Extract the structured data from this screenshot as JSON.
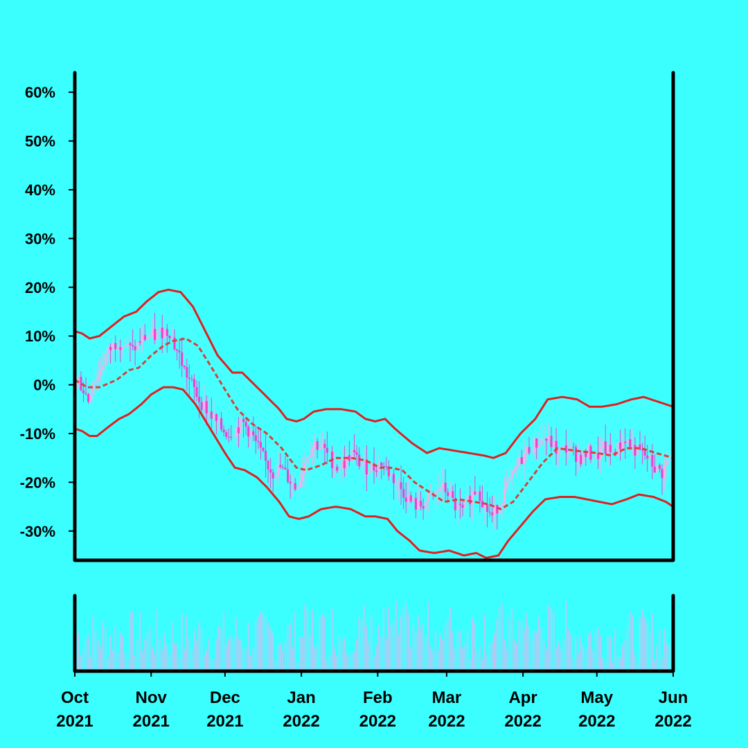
{
  "colors": {
    "background": "#3bffff",
    "band_fill": "#47ffff",
    "band_line": "#e01e1e",
    "mid_line": "#d8403a",
    "candle_up": "#f4b3e6",
    "candle_down": "#f53fd0",
    "volume": "#b9c8f5",
    "axis": "#000000"
  },
  "chart_data": {
    "type": "candlestick",
    "title": "",
    "xlabel": "",
    "ylabel": "",
    "ylim": [
      -36,
      64
    ],
    "ytick_values": [
      -30,
      -20,
      -10,
      0,
      10,
      20,
      30,
      40,
      50,
      60
    ],
    "ytick_labels": [
      "-30%",
      "-20%",
      "-10%",
      "0%",
      "10%",
      "20%",
      "30%",
      "40%",
      "50%",
      "60%"
    ],
    "x_start": "2021-10-01",
    "x_end": "2022-06-01",
    "xtick_labels": [
      [
        "Oct",
        "2021"
      ],
      [
        "Nov",
        "2021"
      ],
      [
        "Dec",
        "2021"
      ],
      [
        "Jan",
        "2022"
      ],
      [
        "Feb",
        "2022"
      ],
      [
        "Mar",
        "2022"
      ],
      [
        "Apr",
        "2022"
      ],
      [
        "May",
        "2022"
      ],
      [
        "Jun",
        "2022"
      ]
    ],
    "xtick_days": [
      0,
      31,
      61,
      92,
      123,
      151,
      182,
      212,
      243
    ],
    "series": [
      {
        "name": "middle band (moving average)",
        "style": "dashed",
        "points": [
          [
            0,
            1
          ],
          [
            5,
            -0.5
          ],
          [
            10,
            -0.5
          ],
          [
            17,
            1
          ],
          [
            22,
            3
          ],
          [
            26,
            3.5
          ],
          [
            31,
            6
          ],
          [
            36,
            8
          ],
          [
            40,
            9
          ],
          [
            45,
            9.5
          ],
          [
            50,
            8
          ],
          [
            55,
            4
          ],
          [
            61,
            -1
          ],
          [
            66,
            -5
          ],
          [
            72,
            -8
          ],
          [
            78,
            -10
          ],
          [
            84,
            -13
          ],
          [
            90,
            -17
          ],
          [
            94,
            -17.5
          ],
          [
            100,
            -16.5
          ],
          [
            106,
            -15
          ],
          [
            112,
            -15
          ],
          [
            118,
            -15.5
          ],
          [
            124,
            -17
          ],
          [
            128,
            -17
          ],
          [
            133,
            -17.5
          ],
          [
            138,
            -20
          ],
          [
            144,
            -22
          ],
          [
            150,
            -24
          ],
          [
            156,
            -23.5
          ],
          [
            162,
            -24
          ],
          [
            168,
            -24.5
          ],
          [
            173,
            -25.5
          ],
          [
            178,
            -24
          ],
          [
            184,
            -20
          ],
          [
            190,
            -16
          ],
          [
            196,
            -13
          ],
          [
            203,
            -13.5
          ],
          [
            212,
            -14
          ],
          [
            218,
            -14.5
          ],
          [
            224,
            -13
          ],
          [
            230,
            -13
          ],
          [
            236,
            -14
          ],
          [
            243,
            -15
          ]
        ]
      },
      {
        "name": "upper band",
        "style": "solid",
        "points": [
          [
            0,
            11
          ],
          [
            3,
            10.5
          ],
          [
            6,
            9.5
          ],
          [
            10,
            10
          ],
          [
            15,
            12
          ],
          [
            20,
            14
          ],
          [
            25,
            15
          ],
          [
            29,
            17
          ],
          [
            34,
            19
          ],
          [
            38,
            19.5
          ],
          [
            43,
            19
          ],
          [
            48,
            16
          ],
          [
            53,
            11
          ],
          [
            58,
            6
          ],
          [
            64,
            2.5
          ],
          [
            68,
            2.5
          ],
          [
            73,
            0
          ],
          [
            77,
            -2
          ],
          [
            83,
            -5
          ],
          [
            86,
            -7
          ],
          [
            90,
            -7.5
          ],
          [
            93,
            -7
          ],
          [
            97,
            -5.5
          ],
          [
            102,
            -5
          ],
          [
            108,
            -5
          ],
          [
            114,
            -5.5
          ],
          [
            118,
            -7
          ],
          [
            122,
            -7.5
          ],
          [
            126,
            -7
          ],
          [
            130,
            -9
          ],
          [
            137,
            -12
          ],
          [
            143,
            -14
          ],
          [
            148,
            -13
          ],
          [
            154,
            -13.5
          ],
          [
            160,
            -14
          ],
          [
            166,
            -14.5
          ],
          [
            170,
            -15
          ],
          [
            175,
            -14
          ],
          [
            181,
            -10
          ],
          [
            187,
            -7
          ],
          [
            192,
            -3
          ],
          [
            198,
            -2.5
          ],
          [
            204,
            -3
          ],
          [
            209,
            -4.5
          ],
          [
            214,
            -4.5
          ],
          [
            220,
            -4
          ],
          [
            226,
            -3
          ],
          [
            231,
            -2.5
          ],
          [
            237,
            -3.5
          ],
          [
            243,
            -4.5
          ]
        ]
      },
      {
        "name": "lower band",
        "style": "solid",
        "points": [
          [
            0,
            -9
          ],
          [
            3,
            -9.5
          ],
          [
            6,
            -10.5
          ],
          [
            9,
            -10.5
          ],
          [
            14,
            -8.5
          ],
          [
            18,
            -7
          ],
          [
            22,
            -6
          ],
          [
            27,
            -4
          ],
          [
            31,
            -2
          ],
          [
            36,
            -0.5
          ],
          [
            40,
            -0.5
          ],
          [
            44,
            -1
          ],
          [
            49,
            -4
          ],
          [
            55,
            -9
          ],
          [
            61,
            -14
          ],
          [
            65,
            -17
          ],
          [
            69,
            -17.5
          ],
          [
            74,
            -19
          ],
          [
            78,
            -21
          ],
          [
            83,
            -24
          ],
          [
            87,
            -27
          ],
          [
            91,
            -27.5
          ],
          [
            95,
            -27
          ],
          [
            100,
            -25.5
          ],
          [
            106,
            -25
          ],
          [
            112,
            -25.5
          ],
          [
            118,
            -27
          ],
          [
            122,
            -27
          ],
          [
            127,
            -27.5
          ],
          [
            131,
            -30
          ],
          [
            136,
            -32
          ],
          [
            140,
            -34
          ],
          [
            146,
            -34.5
          ],
          [
            152,
            -34
          ],
          [
            158,
            -35
          ],
          [
            163,
            -34.5
          ],
          [
            167,
            -35.5
          ],
          [
            172,
            -35
          ],
          [
            176,
            -32
          ],
          [
            181,
            -29
          ],
          [
            186,
            -26
          ],
          [
            191,
            -23.5
          ],
          [
            197,
            -23
          ],
          [
            203,
            -23
          ],
          [
            208,
            -23.5
          ],
          [
            213,
            -24
          ],
          [
            218,
            -24.5
          ],
          [
            224,
            -23.5
          ],
          [
            229,
            -22.5
          ],
          [
            235,
            -23
          ],
          [
            240,
            -24
          ],
          [
            243,
            -25
          ]
        ]
      },
      {
        "name": "price path",
        "style": "candles",
        "points": [
          [
            0,
            -1
          ],
          [
            2,
            1
          ],
          [
            4,
            -1
          ],
          [
            6,
            -3
          ],
          [
            8,
            1
          ],
          [
            10,
            2
          ],
          [
            13,
            6
          ],
          [
            16,
            8
          ],
          [
            18,
            9
          ],
          [
            21,
            8
          ],
          [
            24,
            7
          ],
          [
            27,
            9
          ],
          [
            30,
            10
          ],
          [
            33,
            10
          ],
          [
            36,
            11
          ],
          [
            39,
            11
          ],
          [
            41,
            8
          ],
          [
            43,
            6
          ],
          [
            45,
            3
          ],
          [
            47,
            1
          ],
          [
            49,
            -1
          ],
          [
            51,
            -3
          ],
          [
            54,
            -5
          ],
          [
            57,
            -7
          ],
          [
            60,
            -9
          ],
          [
            63,
            -10
          ],
          [
            66,
            -9
          ],
          [
            69,
            -8
          ],
          [
            72,
            -10
          ],
          [
            75,
            -13
          ],
          [
            78,
            -16
          ],
          [
            81,
            -18
          ],
          [
            84,
            -17
          ],
          [
            87,
            -19
          ],
          [
            90,
            -21
          ],
          [
            92,
            -19
          ],
          [
            95,
            -14
          ],
          [
            98,
            -12
          ],
          [
            101,
            -13
          ],
          [
            104,
            -15
          ],
          [
            107,
            -17
          ],
          [
            110,
            -16
          ],
          [
            113,
            -14
          ],
          [
            116,
            -16
          ],
          [
            119,
            -17
          ],
          [
            122,
            -17
          ],
          [
            125,
            -16
          ],
          [
            128,
            -18
          ],
          [
            131,
            -20
          ],
          [
            134,
            -22
          ],
          [
            137,
            -24
          ],
          [
            140,
            -25
          ],
          [
            143,
            -24
          ],
          [
            146,
            -23
          ],
          [
            149,
            -21
          ],
          [
            152,
            -22
          ],
          [
            155,
            -25
          ],
          [
            158,
            -26
          ],
          [
            161,
            -23
          ],
          [
            164,
            -21
          ],
          [
            167,
            -25
          ],
          [
            170,
            -27
          ],
          [
            173,
            -24
          ],
          [
            176,
            -21
          ],
          [
            179,
            -18
          ],
          [
            182,
            -15
          ],
          [
            185,
            -13
          ],
          [
            188,
            -12
          ],
          [
            191,
            -11
          ],
          [
            194,
            -12
          ],
          [
            197,
            -14
          ],
          [
            200,
            -13
          ],
          [
            203,
            -14
          ],
          [
            206,
            -15
          ],
          [
            209,
            -14
          ],
          [
            212,
            -15
          ],
          [
            215,
            -13
          ],
          [
            218,
            -14
          ],
          [
            221,
            -13
          ],
          [
            224,
            -11
          ],
          [
            227,
            -13
          ],
          [
            230,
            -14
          ],
          [
            233,
            -15
          ],
          [
            236,
            -17
          ],
          [
            239,
            -18
          ],
          [
            241,
            -16
          ],
          [
            243,
            -15
          ]
        ]
      }
    ],
    "volume": {
      "ylim": [
        0,
        100
      ],
      "ticks": "none"
    }
  }
}
